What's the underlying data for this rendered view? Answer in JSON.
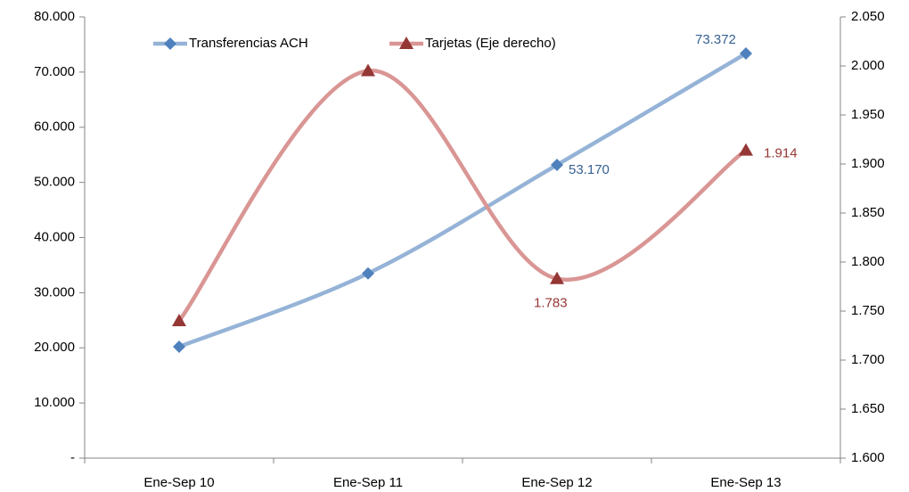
{
  "chart_data": {
    "type": "line",
    "categories": [
      "Ene-Sep 10",
      "Ene-Sep 11",
      "Ene-Sep 12",
      "Ene-Sep 13"
    ],
    "series": [
      {
        "name": "Transferencias ACH",
        "color": "#95b3d7",
        "marker_color": "#4f81bd",
        "label_color": "#376092",
        "marker": "diamond",
        "values": [
          20200,
          33500,
          53170,
          73372
        ],
        "value_labels": [
          null,
          null,
          "53.170",
          "73.372"
        ]
      },
      {
        "name": "Tarjetas (Eje derecho)",
        "color": "#d99694",
        "marker_color": "#953735",
        "label_color": "#953735",
        "marker": "triangle",
        "axis": "y2",
        "values": [
          1740,
          1995,
          1783,
          1914
        ],
        "value_labels": [
          null,
          null,
          "1.783",
          "1.914"
        ]
      }
    ],
    "ylim": [
      0,
      80000
    ],
    "yticks": [
      {
        "value": 0,
        "label": "-"
      },
      {
        "value": 10000,
        "label": "10.000"
      },
      {
        "value": 20000,
        "label": "20.000"
      },
      {
        "value": 30000,
        "label": "30.000"
      },
      {
        "value": 40000,
        "label": "40.000"
      },
      {
        "value": 50000,
        "label": "50.000"
      },
      {
        "value": 60000,
        "label": "60.000"
      },
      {
        "value": 70000,
        "label": "70.000"
      },
      {
        "value": 80000,
        "label": "80.000"
      }
    ],
    "y2lim": [
      1600,
      2050
    ],
    "y2ticks": [
      {
        "value": 1600,
        "label": "1.600"
      },
      {
        "value": 1650,
        "label": "1.650"
      },
      {
        "value": 1700,
        "label": "1.700"
      },
      {
        "value": 1750,
        "label": "1.750"
      },
      {
        "value": 1800,
        "label": "1.800"
      },
      {
        "value": 1850,
        "label": "1.850"
      },
      {
        "value": 1900,
        "label": "1.900"
      },
      {
        "value": 1950,
        "label": "1.950"
      },
      {
        "value": 2000,
        "label": "2.000"
      },
      {
        "value": 2050,
        "label": "2.050"
      }
    ],
    "grid": false,
    "smooth": true,
    "legend": "top"
  }
}
